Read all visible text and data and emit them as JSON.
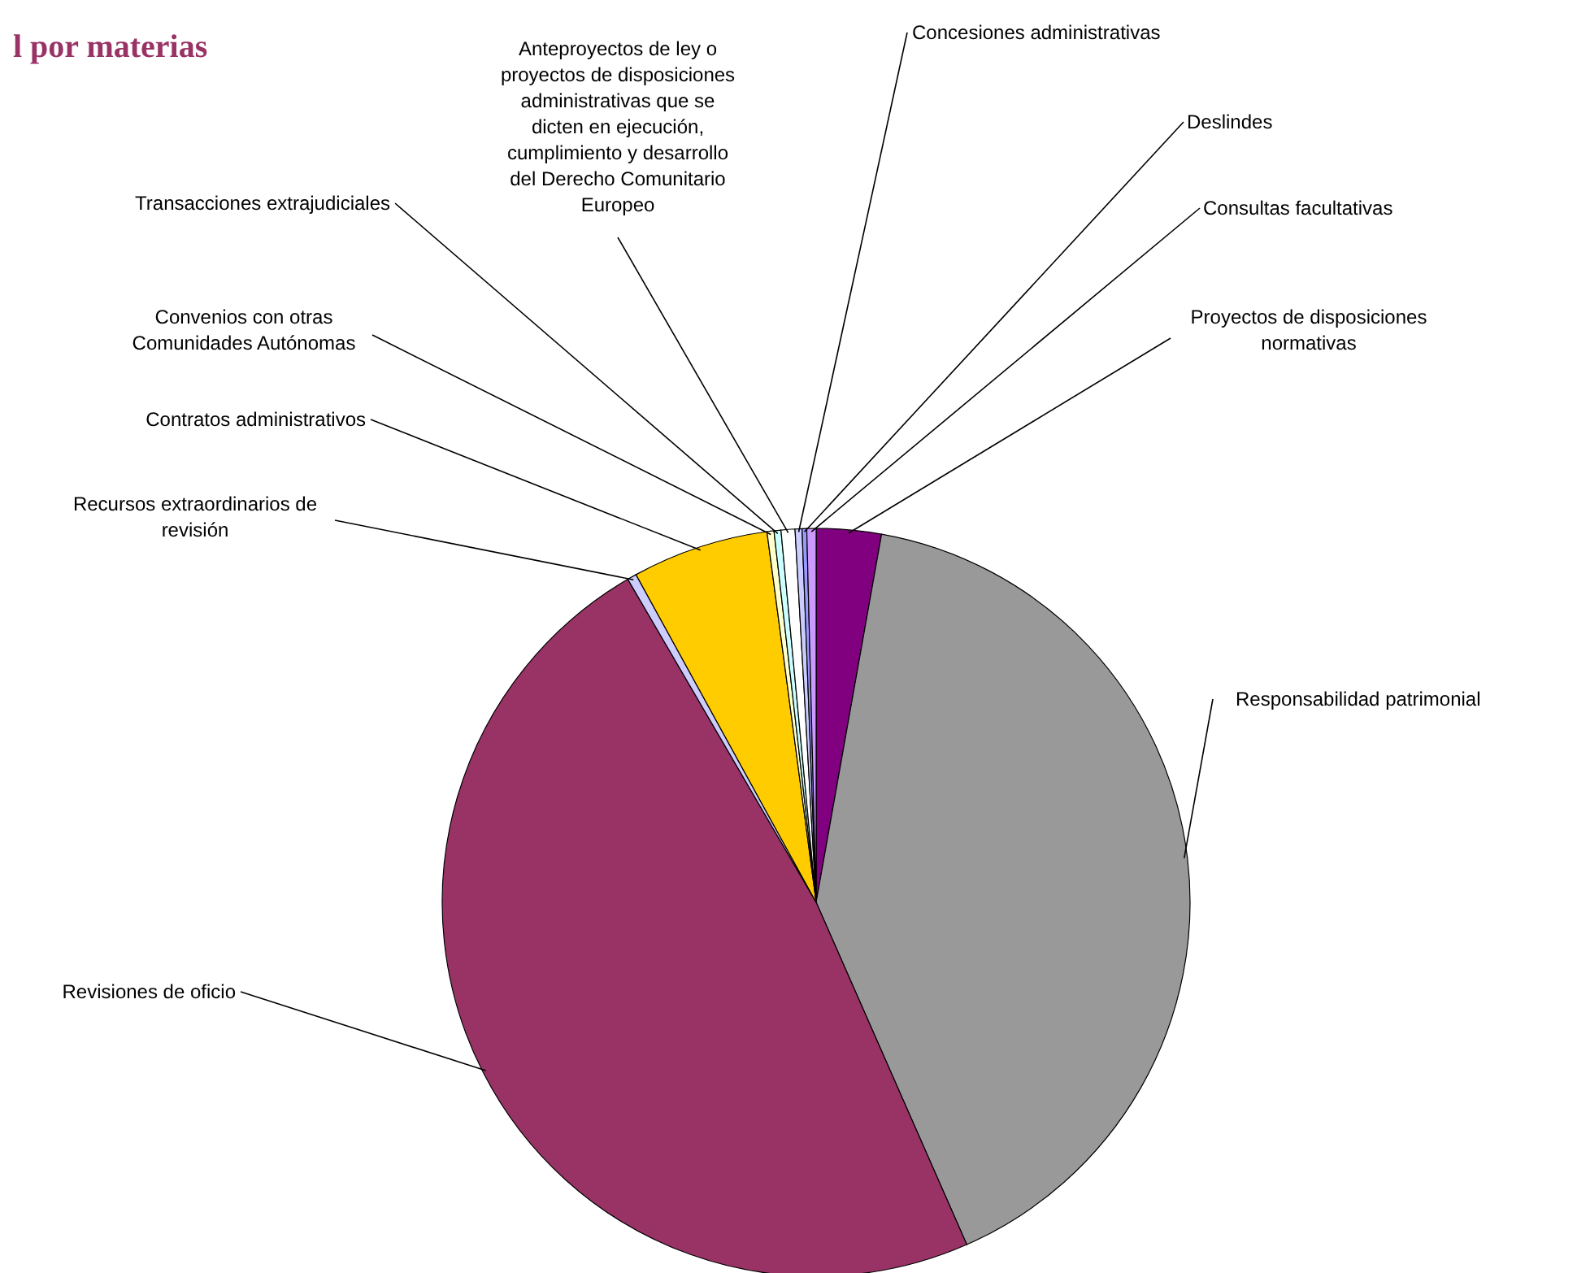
{
  "chart_data": {
    "type": "pie",
    "title": "l por materias",
    "categories": [
      "Proyectos de disposiciones normativas",
      "Responsabilidad patrimonial",
      "Revisiones de oficio",
      "Recursos extraordinarios de revisión",
      "Contratos administrativos",
      "Convenios con otras Comunidades Autónomas",
      "Transacciones extrajudiciales",
      "Anteproyectos de ley o proyectos de disposiciones administrativas que se dicten en ejecución, cumplimiento y desarrollo del Derecho Comunitario Europeo",
      "Concesiones administrativas",
      "Deslindes",
      "Consultas facultativas"
    ],
    "values": [
      2.8,
      40.6,
      48.2,
      0.4,
      5.9,
      0.3,
      0.3,
      0.6,
      0.3,
      0.2,
      0.4
    ],
    "colors": [
      "#800080",
      "#999999",
      "#993366",
      "#ccccff",
      "#ffcc00",
      "#ffffcc",
      "#ccffff",
      "#ffffff",
      "#ccccff",
      "#9999ff",
      "#cc99ff"
    ]
  }
}
